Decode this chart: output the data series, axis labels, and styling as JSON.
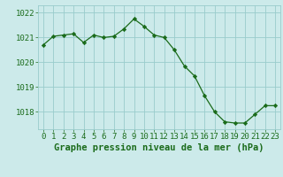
{
  "x": [
    0,
    1,
    2,
    3,
    4,
    5,
    6,
    7,
    8,
    9,
    10,
    11,
    12,
    13,
    14,
    15,
    16,
    17,
    18,
    19,
    20,
    21,
    22,
    23
  ],
  "y": [
    1020.7,
    1021.05,
    1021.1,
    1021.15,
    1020.8,
    1021.1,
    1021.0,
    1021.05,
    1021.35,
    1021.75,
    1021.45,
    1021.1,
    1021.0,
    1020.5,
    1019.85,
    1019.45,
    1018.65,
    1018.0,
    1017.6,
    1017.55,
    1017.55,
    1017.9,
    1018.25,
    1018.25
  ],
  "line_color": "#1a6b1a",
  "marker": "D",
  "marker_size": 2.2,
  "bg_color": "#cceaea",
  "grid_color": "#99cccc",
  "xlabel": "Graphe pression niveau de la mer (hPa)",
  "xlabel_color": "#1a6b1a",
  "xlabel_fontsize": 7.5,
  "tick_color": "#1a6b1a",
  "tick_fontsize": 6.5,
  "ylim": [
    1017.3,
    1022.3
  ],
  "yticks": [
    1018,
    1019,
    1020,
    1021,
    1022
  ],
  "xlim": [
    -0.5,
    23.5
  ],
  "xticks": [
    0,
    1,
    2,
    3,
    4,
    5,
    6,
    7,
    8,
    9,
    10,
    11,
    12,
    13,
    14,
    15,
    16,
    17,
    18,
    19,
    20,
    21,
    22,
    23
  ]
}
